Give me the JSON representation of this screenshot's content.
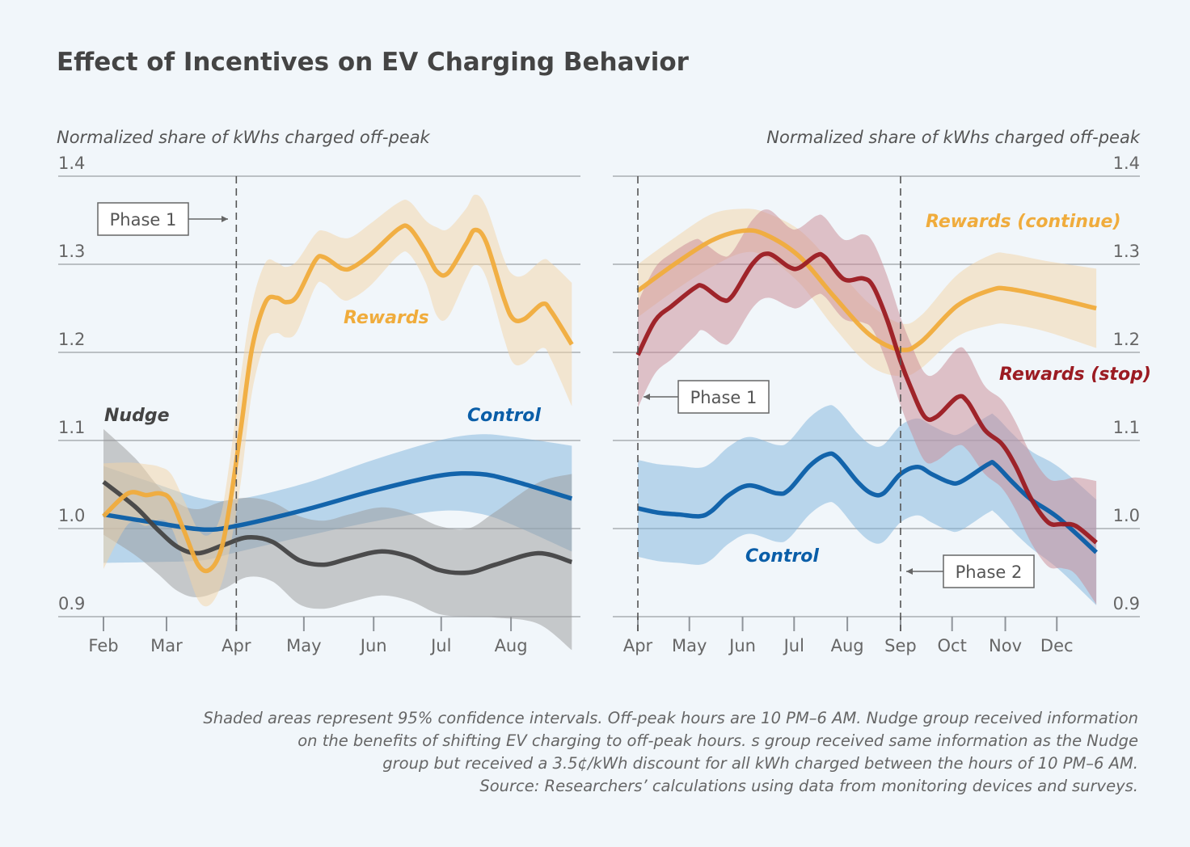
{
  "title": "Effect of Incentives on EV Charging Behavior",
  "footnote": [
    "Shaded areas represent 95% confidence intervals. Off-peak hours are 10 PM–6 AM. Nudge group received information",
    "on the benefits of shifting EV charging to off-peak hours. s group received same information as the Nudge",
    "group but received a 3.5¢/kWh discount for all kWh charged between the hours of 10 PM–6 AM.",
    "Source: Researchers’ calculations using data from monitoring devices and surveys."
  ],
  "colors": {
    "background": "#f1f6fa",
    "rewards": "#f0ac3c",
    "control": "#0a5ea8",
    "nudge": "#444444",
    "rewards_stop": "#9b1b22"
  },
  "chart_data": [
    {
      "type": "line",
      "ylabel": "Normalized share of kWhs charged off-peak",
      "ylim": [
        0.9,
        1.4
      ],
      "yticks": [
        "0.9",
        "1.0",
        "1.1",
        "1.2",
        "1.3",
        "1.4"
      ],
      "xticks": [
        "Feb",
        "Mar",
        "Apr",
        "May",
        "Jun",
        "Jul",
        "Aug"
      ],
      "grid": true,
      "bands": "95% confidence intervals",
      "annotations": [
        {
          "label": "Phase 1",
          "x": "Apr 01"
        }
      ],
      "series": [
        {
          "name": "Control",
          "color": "#0a5ea8",
          "band": "#7fb3dc",
          "x": [
            "Feb 01",
            "Feb 23",
            "Mar 17",
            "Apr 01",
            "May 01",
            "Jun 01",
            "Jun 30",
            "Jul 18",
            "Aug 02",
            "Aug 28"
          ],
          "y": [
            1.016,
            1.007,
            0.999,
            1.003,
            1.021,
            1.043,
            1.06,
            1.062,
            1.054,
            1.034
          ],
          "ci": [
            0.055,
            0.045,
            0.035,
            0.03,
            0.03,
            0.035,
            0.04,
            0.045,
            0.05,
            0.06
          ]
        },
        {
          "name": "Nudge",
          "color": "#444444",
          "band": "#9a9a9a",
          "x": [
            "Feb 01",
            "Feb 15",
            "Feb 25",
            "Mar 06",
            "Mar 15",
            "Mar 26",
            "Apr 06",
            "Apr 17",
            "Apr 29",
            "May 10",
            "May 21",
            "Jun 04",
            "Jun 17",
            "Jun 30",
            "Jul 13",
            "Jul 25",
            "Aug 13",
            "Aug 28"
          ],
          "y": [
            1.053,
            1.025,
            0.999,
            0.979,
            0.972,
            0.981,
            0.99,
            0.985,
            0.964,
            0.959,
            0.966,
            0.974,
            0.968,
            0.953,
            0.95,
            0.959,
            0.972,
            0.962
          ],
          "ci": [
            0.06,
            0.055,
            0.05,
            0.05,
            0.05,
            0.05,
            0.045,
            0.045,
            0.05,
            0.05,
            0.05,
            0.05,
            0.05,
            0.05,
            0.05,
            0.06,
            0.08,
            0.1
          ]
        },
        {
          "name": "Rewards",
          "color": "#f0ac3c",
          "band": "#f3d3a6",
          "x": [
            "Feb 01",
            "Feb 12",
            "Feb 20",
            "Feb 26",
            "Mar 03",
            "Mar 09",
            "Mar 15",
            "Mar 20",
            "Mar 25",
            "Mar 29",
            "Apr 03",
            "Apr 08",
            "Apr 14",
            "Apr 19",
            "Apr 23",
            "Apr 28",
            "May 06",
            "May 10",
            "May 18",
            "May 23",
            "May 31",
            "Jun 12",
            "Jun 17",
            "Jun 24",
            "Jun 29",
            "Jul 04",
            "Jul 12",
            "Jul 16",
            "Jul 21",
            "Jul 29",
            "Aug 02",
            "Aug 07",
            "Aug 15",
            "Aug 19",
            "Aug 28"
          ],
          "y": [
            1.014,
            1.04,
            1.038,
            1.04,
            1.032,
            0.996,
            0.959,
            0.953,
            0.974,
            1.025,
            1.113,
            1.205,
            1.257,
            1.262,
            1.257,
            1.264,
            1.304,
            1.308,
            1.295,
            1.297,
            1.312,
            1.34,
            1.341,
            1.315,
            1.292,
            1.29,
            1.323,
            1.339,
            1.325,
            1.26,
            1.238,
            1.238,
            1.255,
            1.246,
            1.209
          ],
          "ci": [
            0.06,
            0.035,
            0.035,
            0.03,
            0.03,
            0.035,
            0.04,
            0.04,
            0.04,
            0.05,
            0.06,
            0.05,
            0.045,
            0.04,
            0.04,
            0.04,
            0.03,
            0.03,
            0.035,
            0.035,
            0.035,
            0.03,
            0.03,
            0.035,
            0.05,
            0.05,
            0.04,
            0.04,
            0.04,
            0.045,
            0.05,
            0.05,
            0.05,
            0.055,
            0.07
          ]
        }
      ]
    },
    {
      "type": "line",
      "ylabel": "Normalized share of kWhs charged off-peak",
      "ylim": [
        0.9,
        1.4
      ],
      "yticks": [
        "0.9",
        "1.0",
        "1.1",
        "1.2",
        "1.3",
        "1.4"
      ],
      "xticks": [
        "Apr",
        "May",
        "Jun",
        "Jul",
        "Aug",
        "Sep",
        "Oct",
        "Nov",
        "Dec"
      ],
      "grid": true,
      "bands": "95% confidence intervals",
      "annotations": [
        {
          "label": "Phase 1",
          "x": "Apr 01"
        },
        {
          "label": "Phase 2",
          "x": "Sep 01"
        }
      ],
      "series": [
        {
          "name": "Control",
          "color": "#0a5ea8",
          "band": "#7fb3dc",
          "x": [
            "Apr 01",
            "Apr 13",
            "Apr 25",
            "May 07",
            "May 14",
            "May 24",
            "Jun 05",
            "Jun 21",
            "Jun 28",
            "Jul 10",
            "Jul 20",
            "Jul 26",
            "Aug 07",
            "Aug 15",
            "Aug 22",
            "Sep 01",
            "Sep 11",
            "Sep 19",
            "Sep 29",
            "Oct 06",
            "Oct 22",
            "Oct 26",
            "Nov 05",
            "Nov 16",
            "Dec 02",
            "Dec 24"
          ],
          "y": [
            1.023,
            1.018,
            1.016,
            1.014,
            1.02,
            1.038,
            1.049,
            1.04,
            1.044,
            1.071,
            1.084,
            1.081,
            1.053,
            1.04,
            1.04,
            1.062,
            1.07,
            1.062,
            1.053,
            1.053,
            1.073,
            1.073,
            1.053,
            1.033,
            1.012,
            0.973
          ],
          "ci": [
            0.055,
            0.055,
            0.055,
            0.055,
            0.055,
            0.055,
            0.055,
            0.055,
            0.055,
            0.055,
            0.055,
            0.055,
            0.055,
            0.055,
            0.055,
            0.055,
            0.055,
            0.055,
            0.055,
            0.055,
            0.055,
            0.055,
            0.055,
            0.055,
            0.058,
            0.06
          ]
        },
        {
          "name": "Rewards (continue)",
          "color": "#f0ac3c",
          "band": "#f3d3a6",
          "x": [
            "Apr 01",
            "Apr 23",
            "May 14",
            "Jun 01",
            "Jun 14",
            "Jul 04",
            "Jul 24",
            "Aug 14",
            "Sep 01",
            "Sep 13",
            "Oct 04",
            "Oct 24",
            "Nov 03",
            "Nov 24",
            "Dec 24"
          ],
          "y": [
            1.27,
            1.301,
            1.327,
            1.338,
            1.334,
            1.309,
            1.264,
            1.22,
            1.203,
            1.212,
            1.253,
            1.271,
            1.272,
            1.264,
            1.25
          ],
          "ci": [
            0.03,
            0.03,
            0.03,
            0.025,
            0.025,
            0.03,
            0.035,
            0.035,
            0.03,
            0.03,
            0.035,
            0.04,
            0.04,
            0.04,
            0.045
          ]
        },
        {
          "name": "Rewards (stop)",
          "color": "#9b1b22",
          "band": "#c98a93",
          "x": [
            "Apr 01",
            "Apr 11",
            "Apr 21",
            "May 04",
            "May 09",
            "May 20",
            "May 26",
            "Jun 07",
            "Jun 16",
            "Jun 28",
            "Jul 04",
            "Jul 14",
            "Jul 19",
            "Jul 30",
            "Aug 10",
            "Aug 16",
            "Aug 24",
            "Sep 01",
            "Sep 07",
            "Sep 15",
            "Sep 22",
            "Oct 04",
            "Oct 10",
            "Oct 20",
            "Oct 30",
            "Nov 07",
            "Nov 16",
            "Nov 26",
            "Dec 04",
            "Dec 12",
            "Dec 24"
          ],
          "y": [
            1.197,
            1.236,
            1.253,
            1.273,
            1.275,
            1.26,
            1.264,
            1.301,
            1.312,
            1.297,
            1.296,
            1.31,
            1.308,
            1.283,
            1.284,
            1.275,
            1.238,
            1.19,
            1.16,
            1.127,
            1.127,
            1.149,
            1.144,
            1.112,
            1.096,
            1.071,
            1.034,
            1.007,
            1.005,
            1.003,
            0.984
          ],
          "ci": [
            0.06,
            0.06,
            0.06,
            0.055,
            0.05,
            0.05,
            0.05,
            0.05,
            0.05,
            0.045,
            0.045,
            0.045,
            0.045,
            0.045,
            0.05,
            0.05,
            0.05,
            0.05,
            0.05,
            0.05,
            0.05,
            0.055,
            0.055,
            0.05,
            0.05,
            0.05,
            0.05,
            0.05,
            0.05,
            0.055,
            0.07
          ]
        }
      ]
    }
  ]
}
